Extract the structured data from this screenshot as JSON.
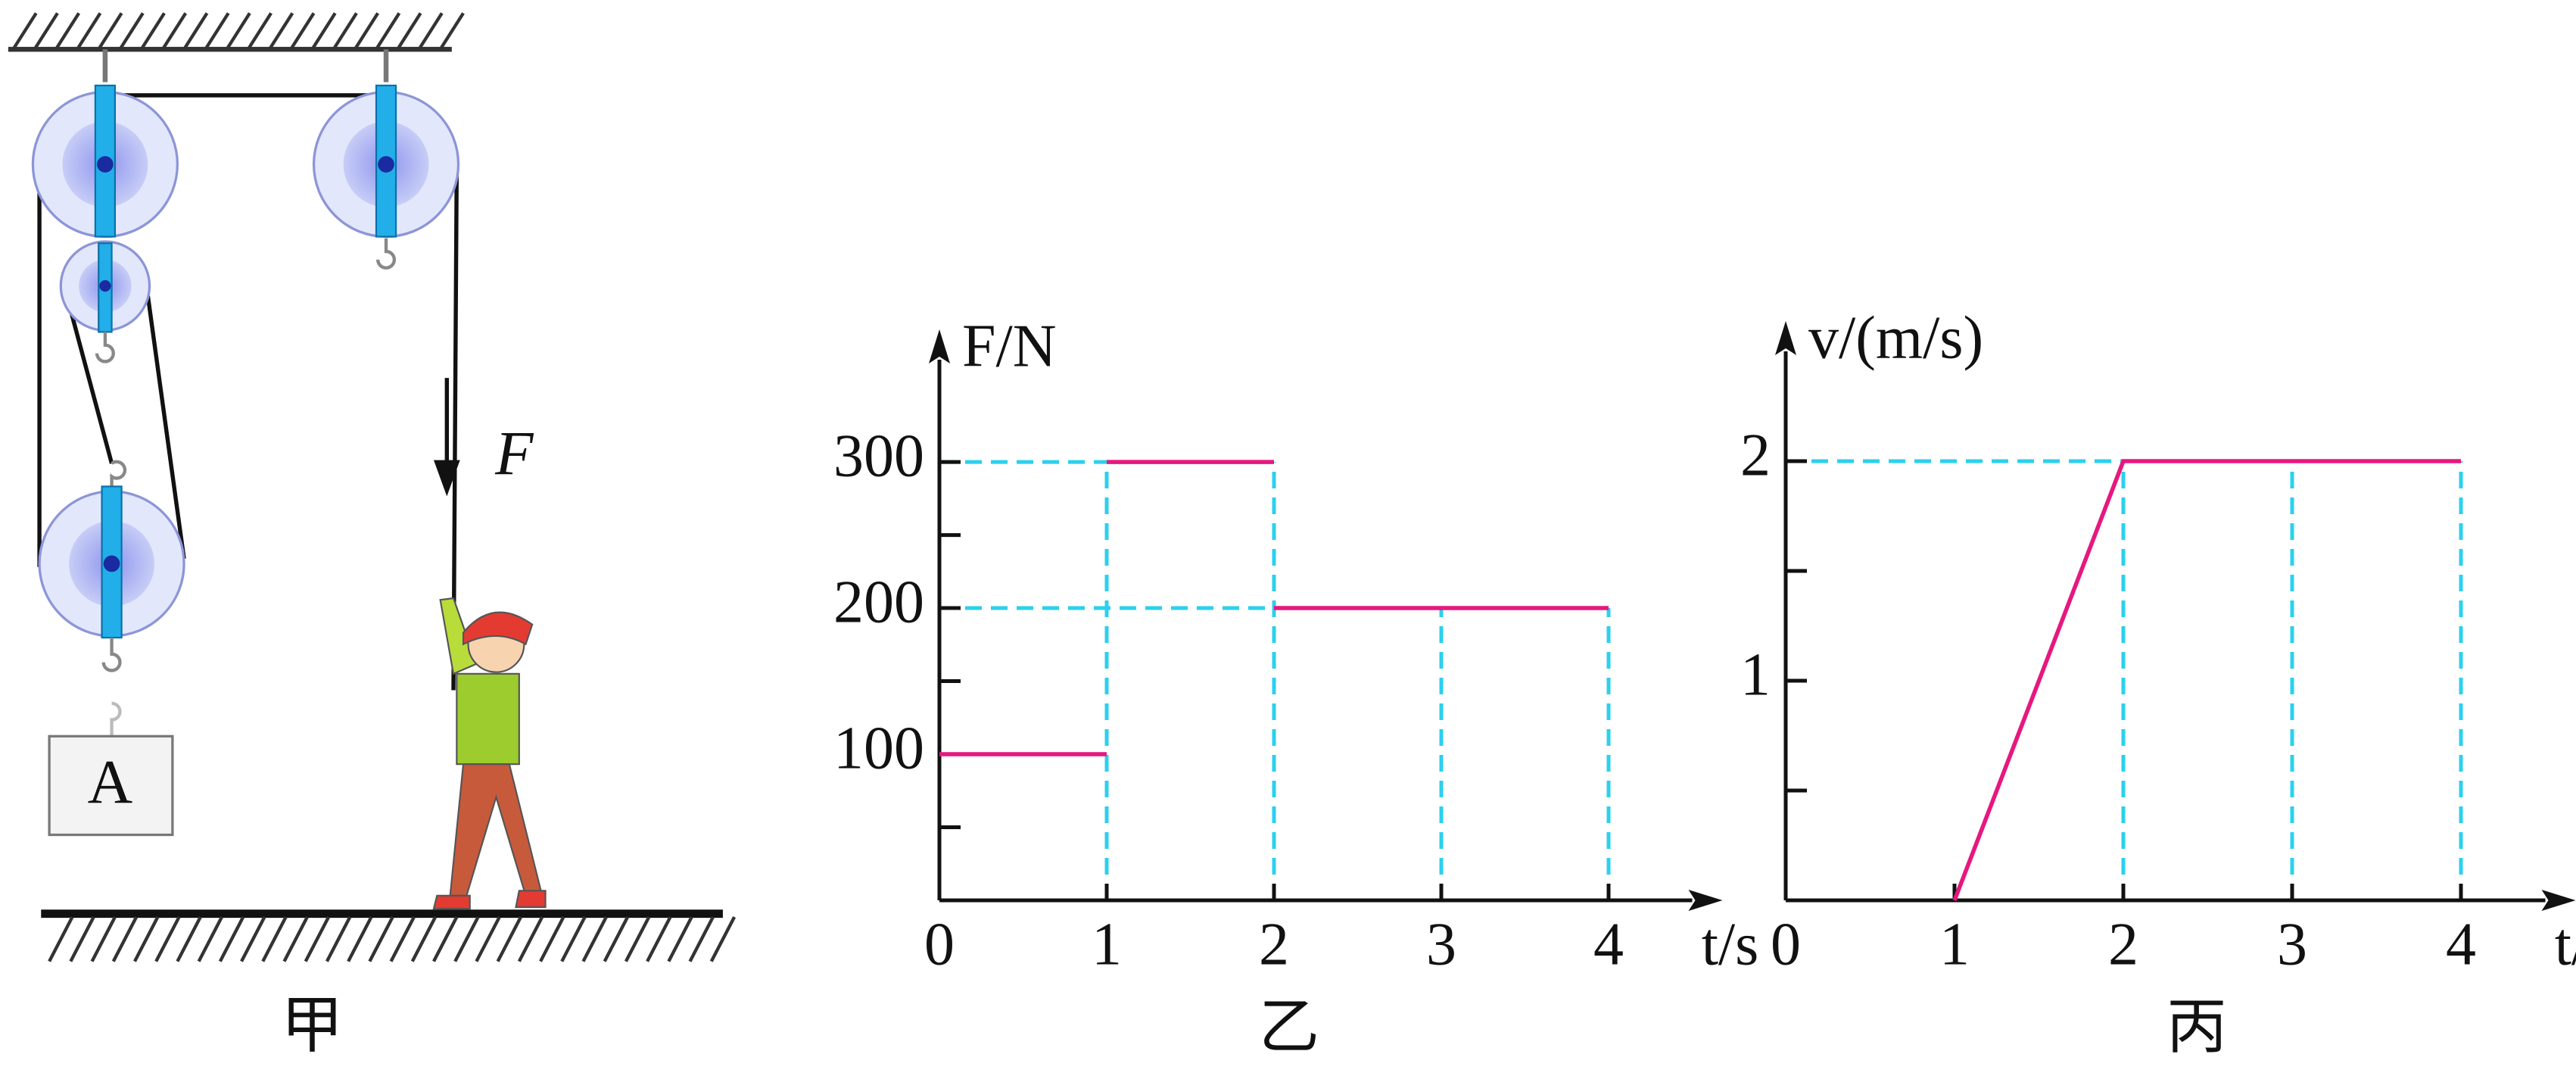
{
  "figure": {
    "force_label": "F",
    "block_label": "A",
    "caption": "甲"
  },
  "chart_data": [
    {
      "type": "line",
      "caption": "乙",
      "ylabel": "F/N",
      "xlabel": "t/s",
      "x": [
        0,
        1,
        1,
        1,
        2,
        2,
        2,
        4
      ],
      "values": [
        100,
        100,
        null,
        300,
        300,
        null,
        200,
        200
      ],
      "color": "#e6187f",
      "guide_color": "#2bd0ee",
      "xlim": [
        0,
        4.5
      ],
      "ylim": [
        0,
        370
      ],
      "xticks": [
        0,
        1,
        2,
        3,
        4
      ],
      "yticks": [
        100,
        200,
        300
      ],
      "minor_yticks": [
        50,
        150,
        250
      ]
    },
    {
      "type": "line",
      "caption": "丙",
      "ylabel": "v/(m/s)",
      "xlabel": "t/s",
      "x": [
        1,
        2,
        4
      ],
      "values": [
        0,
        2,
        2
      ],
      "color": "#e6187f",
      "guide_color": "#2bd0ee",
      "xlim": [
        0,
        4.5
      ],
      "ylim": [
        0,
        2.5
      ],
      "xticks": [
        0,
        1,
        2,
        3,
        4
      ],
      "yticks": [
        1,
        2
      ],
      "minor_yticks": [
        0.5,
        1.5
      ]
    }
  ]
}
